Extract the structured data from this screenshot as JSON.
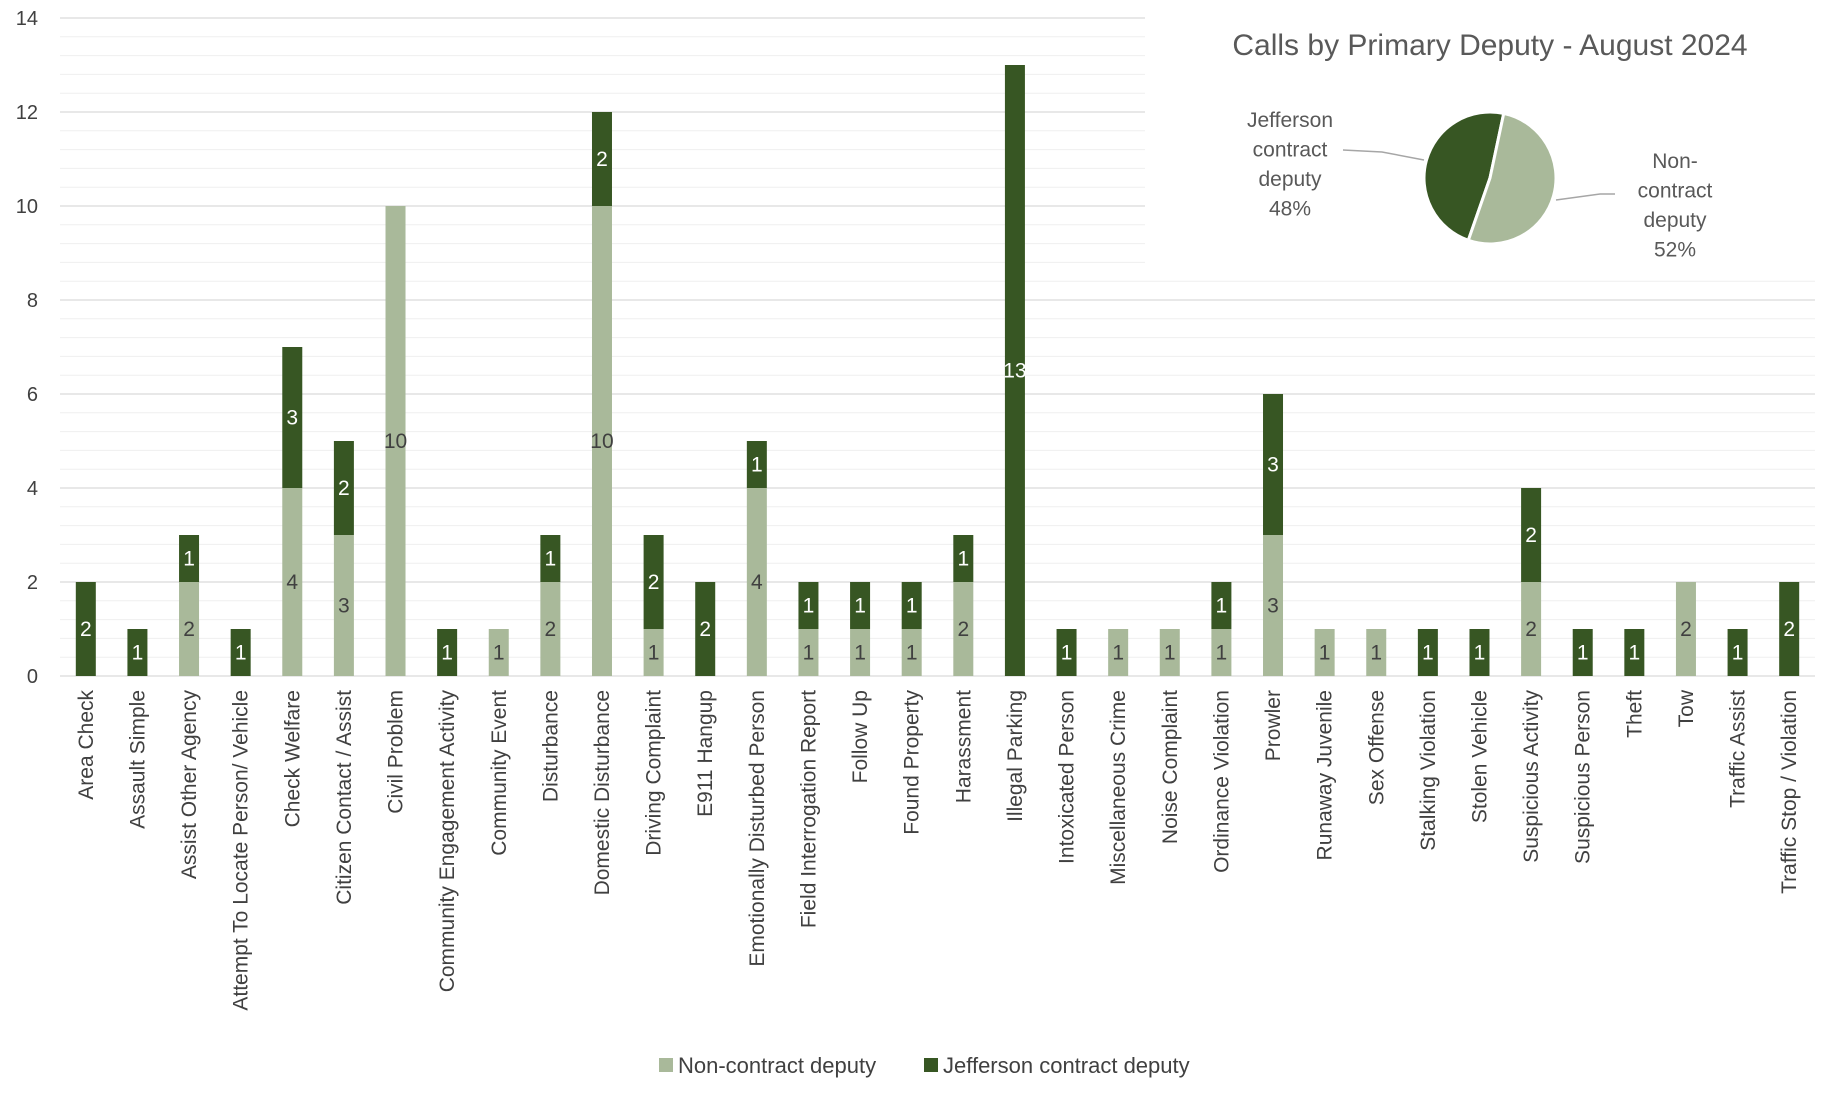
{
  "chart_data": [
    {
      "type": "bar",
      "stacked": true,
      "ylim": [
        0,
        14
      ],
      "yticks": [
        0,
        2,
        4,
        6,
        8,
        10,
        12,
        14
      ],
      "grid": "horizontal major and minor",
      "legend_position": "bottom",
      "categories": [
        "Area Check",
        "Assault Simple",
        "Assist Other Agency",
        "Attempt To Locate Person/ Vehicle",
        "Check Welfare",
        "Citizen Contact / Assist",
        "Civil Problem",
        "Community Engagement Activity",
        "Community Event",
        "Disturbance",
        "Domestic Disturbance",
        "Driving Complaint",
        "E911 Hangup",
        "Emotionally Disturbed Person",
        "Field Interrogation Report",
        "Follow Up",
        "Found Property",
        "Harassment",
        "Illegal Parking",
        "Intoxicated Person",
        "Miscellaneous Crime",
        "Noise Complaint",
        "Ordinance Violation",
        "Prowler",
        "Runaway Juvenile",
        "Sex Offense",
        "Stalking Violation",
        "Stolen Vehicle",
        "Suspicious Activity",
        "Suspicious Person",
        "Theft",
        "Tow",
        "Traffic Assist",
        "Traffic Stop / Violation"
      ],
      "series": [
        {
          "name": "Non-contract deputy",
          "color": "#a9b99a",
          "label_color": "#404040",
          "values": [
            0,
            0,
            2,
            0,
            4,
            3,
            10,
            0,
            1,
            2,
            10,
            1,
            0,
            4,
            1,
            1,
            1,
            2,
            0,
            0,
            1,
            1,
            1,
            3,
            1,
            1,
            0,
            0,
            2,
            0,
            0,
            2,
            0,
            0
          ]
        },
        {
          "name": "Jefferson contract deputy",
          "color": "#375623",
          "label_color": "#ffffff",
          "values": [
            2,
            1,
            1,
            1,
            3,
            2,
            0,
            1,
            0,
            1,
            2,
            2,
            2,
            1,
            1,
            1,
            1,
            1,
            13,
            1,
            0,
            0,
            1,
            3,
            0,
            0,
            1,
            1,
            2,
            1,
            1,
            0,
            1,
            2
          ]
        }
      ]
    },
    {
      "type": "pie",
      "title": "Calls by Primary Deputy - August 2024",
      "slices": [
        {
          "name": "Jefferson contract deputy",
          "label_lines": [
            "Jefferson",
            "contract",
            "deputy",
            "48%"
          ],
          "value": 48,
          "color": "#375623"
        },
        {
          "name": "Non-contract deputy",
          "label_lines": [
            "Non-",
            "contract",
            "deputy",
            "52%"
          ],
          "value": 52,
          "color": "#a9b99a"
        }
      ]
    }
  ],
  "legend": [
    {
      "label": "Non-contract deputy",
      "color": "#a9b99a"
    },
    {
      "label": "Jefferson contract deputy",
      "color": "#375623"
    }
  ]
}
